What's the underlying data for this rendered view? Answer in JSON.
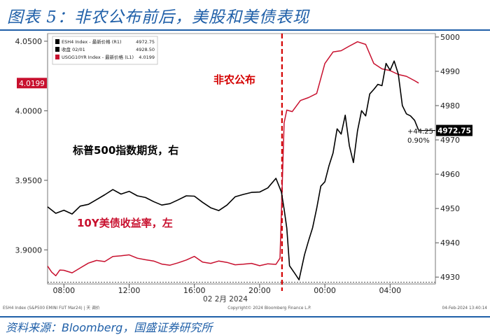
{
  "header": {
    "title": "图表 5：非农公布前后，美股和美债表现"
  },
  "footer": {
    "source": "资料来源：Bloomberg，国盛证券研究所"
  },
  "legend": {
    "rows": [
      {
        "name": "ESH4 Index - 最新价格 (R1)",
        "value": "4972.75",
        "color": "#000000"
      },
      {
        "name": "收盘 02/01",
        "value": "4928.50",
        "color": "#000000"
      },
      {
        "name": "USGG10YR Index - 最新价格 (L1)",
        "value": "4.0199",
        "color": "#c8102e"
      }
    ]
  },
  "bottom_strip": {
    "left": "ESH4 Index (S&P500 EMINI FUT  Mar24) | 天   调价",
    "center": "Copyright© 2024 Bloomberg Finance L.P.",
    "right": "04-Feb-2024 13:40:14"
  },
  "chart_data": {
    "type": "line",
    "xlabel": "02 2月 2024",
    "x_ticks": [
      "08:00",
      "12:00",
      "16:00",
      "20:00",
      "00:00",
      "04:00"
    ],
    "left_axis": {
      "ticks": [
        "3.9000",
        "3.9500",
        "4.0000",
        "4.0500"
      ],
      "ylim": [
        3.8755,
        4.0555
      ]
    },
    "right_axis": {
      "ticks": [
        "4930",
        "4940",
        "4950",
        "4960",
        "4970",
        "4980",
        "4990",
        "5000"
      ],
      "ylim": [
        4928.0,
        5001.0
      ]
    },
    "annotations": {
      "event_label": "非农公布",
      "futures_label": "标普500指数期货，右",
      "yield_label": "10Y美债收益率，左",
      "left_last_value": "4.0199",
      "right_last_value": "4972.75",
      "change_points": "+44.25",
      "change_pct": "0.90%",
      "close_reference": 4928.5
    },
    "series": [
      {
        "name": "ESH4 Index",
        "axis": "right",
        "color": "#000000",
        "points": [
          [
            "07:00",
            4950.5
          ],
          [
            "07:30",
            4948.6
          ],
          [
            "08:00",
            4949.5
          ],
          [
            "08:30",
            4948.4
          ],
          [
            "09:00",
            4950.7
          ],
          [
            "09:30",
            4951.2
          ],
          [
            "10:00",
            4952.6
          ],
          [
            "10:30",
            4954.0
          ],
          [
            "11:00",
            4955.5
          ],
          [
            "11:30",
            4954.2
          ],
          [
            "12:00",
            4955.0
          ],
          [
            "12:30",
            4953.7
          ],
          [
            "13:00",
            4953.2
          ],
          [
            "13:30",
            4952.0
          ],
          [
            "14:00",
            4951.0
          ],
          [
            "14:30",
            4951.4
          ],
          [
            "15:00",
            4952.5
          ],
          [
            "15:30",
            4953.7
          ],
          [
            "16:00",
            4953.6
          ],
          [
            "16:30",
            4951.8
          ],
          [
            "17:00",
            4950.2
          ],
          [
            "17:30",
            4949.4
          ],
          [
            "18:00",
            4951.0
          ],
          [
            "18:30",
            4953.4
          ],
          [
            "19:00",
            4954.1
          ],
          [
            "19:30",
            4954.7
          ],
          [
            "20:00",
            4954.8
          ],
          [
            "20:30",
            4956.0
          ],
          [
            "21:00",
            4958.8
          ],
          [
            "21:20",
            4954.8
          ],
          [
            "21:30",
            4949.8
          ],
          [
            "21:40",
            4944.3
          ],
          [
            "21:50",
            4933.3
          ],
          [
            "22:10",
            4931.0
          ],
          [
            "22:25",
            4929.2
          ],
          [
            "22:45",
            4936.5
          ],
          [
            "23:00",
            4940.6
          ],
          [
            "23:15",
            4944.4
          ],
          [
            "23:30",
            4950.0
          ],
          [
            "23:45",
            4956.5
          ],
          [
            "00:00",
            4957.8
          ],
          [
            "00:15",
            4962.4
          ],
          [
            "00:30",
            4966.2
          ],
          [
            "00:45",
            4973.2
          ],
          [
            "01:00",
            4971.7
          ],
          [
            "01:15",
            4977.2
          ],
          [
            "01:30",
            4968.3
          ],
          [
            "01:45",
            4963.4
          ],
          [
            "02:00",
            4972.6
          ],
          [
            "02:15",
            4978.5
          ],
          [
            "02:30",
            4977.0
          ],
          [
            "02:45",
            4983.4
          ],
          [
            "03:00",
            4984.7
          ],
          [
            "03:15",
            4986.2
          ],
          [
            "03:30",
            4985.8
          ],
          [
            "03:45",
            4992.3
          ],
          [
            "04:00",
            4990.3
          ],
          [
            "04:15",
            4993.0
          ],
          [
            "04:30",
            4989.2
          ],
          [
            "04:45",
            4980.0
          ],
          [
            "05:00",
            4977.6
          ],
          [
            "05:15",
            4977.0
          ],
          [
            "05:30",
            4975.7
          ],
          [
            "05:45",
            4972.75
          ]
        ]
      },
      {
        "name": "USGG10YR Index",
        "axis": "left",
        "color": "#c8102e",
        "points": [
          [
            "07:00",
            3.8883
          ],
          [
            "07:15",
            3.884
          ],
          [
            "07:30",
            3.8814
          ],
          [
            "07:45",
            3.8855
          ],
          [
            "08:00",
            3.8853
          ],
          [
            "08:30",
            3.8835
          ],
          [
            "09:00",
            3.887
          ],
          [
            "09:30",
            3.8905
          ],
          [
            "10:00",
            3.8924
          ],
          [
            "10:30",
            3.8916
          ],
          [
            "11:00",
            3.8952
          ],
          [
            "11:30",
            3.8957
          ],
          [
            "12:00",
            3.8964
          ],
          [
            "12:30",
            3.894
          ],
          [
            "13:00",
            3.8929
          ],
          [
            "13:30",
            3.892
          ],
          [
            "14:00",
            3.8898
          ],
          [
            "14:30",
            3.889
          ],
          [
            "15:00",
            3.8907
          ],
          [
            "15:30",
            3.8927
          ],
          [
            "16:00",
            3.8953
          ],
          [
            "16:30",
            3.8912
          ],
          [
            "17:00",
            3.8903
          ],
          [
            "17:30",
            3.892
          ],
          [
            "18:00",
            3.891
          ],
          [
            "18:30",
            3.8893
          ],
          [
            "19:00",
            3.8897
          ],
          [
            "19:30",
            3.8903
          ],
          [
            "20:00",
            3.8886
          ],
          [
            "20:30",
            3.89
          ],
          [
            "21:00",
            3.8896
          ],
          [
            "21:15",
            3.894
          ],
          [
            "21:30",
            3.9914
          ],
          [
            "21:40",
            4.0005
          ],
          [
            "22:00",
            3.9994
          ],
          [
            "22:30",
            4.0074
          ],
          [
            "23:00",
            4.0095
          ],
          [
            "23:30",
            4.0124
          ],
          [
            "00:00",
            4.034
          ],
          [
            "00:30",
            4.0423
          ],
          [
            "01:00",
            4.0432
          ],
          [
            "01:30",
            4.0465
          ],
          [
            "02:00",
            4.0496
          ],
          [
            "02:30",
            4.0477
          ],
          [
            "03:00",
            4.034
          ],
          [
            "03:30",
            4.0301
          ],
          [
            "04:00",
            4.0289
          ],
          [
            "04:30",
            4.0261
          ],
          [
            "05:00",
            4.0248
          ],
          [
            "05:30",
            4.0216
          ],
          [
            "05:45",
            4.0199
          ]
        ]
      }
    ]
  }
}
